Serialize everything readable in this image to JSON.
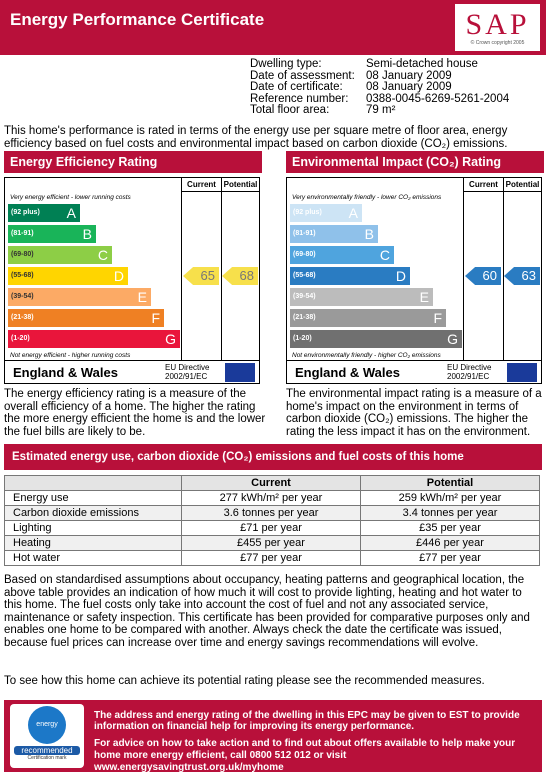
{
  "header": {
    "title": "Energy Performance Certificate",
    "logo": "SAP",
    "copyright": "© Crown copyright 2005"
  },
  "details": [
    {
      "label": "Dwelling type:",
      "value": "Semi-detached house"
    },
    {
      "label": "Date of assessment:",
      "value": "08 January 2009"
    },
    {
      "label": "Date of certificate:",
      "value": "08 January 2009"
    },
    {
      "label": "Reference number:",
      "value": "0388-0045-6269-5261-2004"
    },
    {
      "label": "Total floor area:",
      "value": "79 m²"
    }
  ],
  "intro": "This home's performance is rated in terms of the energy use per square metre of floor area, energy efficiency based on fuel costs and environmental impact based on carbon dioxide (CO₂) emissions.",
  "panels": [
    {
      "title": "Energy Efficiency Rating",
      "columns": [
        "Current",
        "Potential"
      ],
      "top_note": "Very energy efficient - lower running costs",
      "bottom_note": "Not energy efficient - higher running costs",
      "bands": [
        {
          "range": "(92 plus)",
          "letter": "A",
          "color": "#008054"
        },
        {
          "range": "(81-91)",
          "letter": "B",
          "color": "#19b459"
        },
        {
          "range": "(69-80)",
          "letter": "C",
          "color": "#8dce46"
        },
        {
          "range": "(55-68)",
          "letter": "D",
          "color": "#ffd500"
        },
        {
          "range": "(39-54)",
          "letter": "E",
          "color": "#fcaa65"
        },
        {
          "range": "(21-38)",
          "letter": "F",
          "color": "#ef8023"
        },
        {
          "range": "(1-20)",
          "letter": "G",
          "color": "#e9153b"
        }
      ],
      "current": 65,
      "potential": 68,
      "arrow_color": "#f7e04b",
      "region": "England & Wales",
      "directive": [
        "EU Directive",
        "2002/91/EC"
      ],
      "description": "The energy efficiency rating is a measure of the overall efficiency of a home. The higher the rating the more energy efficient the home is and the lower the fuel bills are likely to be."
    },
    {
      "title": "Environmental Impact (CO₂) Rating",
      "columns": [
        "Current",
        "Potential"
      ],
      "top_note": "Very environmentally friendly - lower CO₂ emissions",
      "bottom_note": "Not environmentally friendly - higher CO₂ emissions",
      "bands": [
        {
          "range": "(92 plus)",
          "letter": "A",
          "color": "#cde4f5"
        },
        {
          "range": "(81-91)",
          "letter": "B",
          "color": "#8fc1ea"
        },
        {
          "range": "(69-80)",
          "letter": "C",
          "color": "#4fa4de"
        },
        {
          "range": "(55-68)",
          "letter": "D",
          "color": "#2a7cc2"
        },
        {
          "range": "(39-54)",
          "letter": "E",
          "color": "#bcbcbc"
        },
        {
          "range": "(21-38)",
          "letter": "F",
          "color": "#9a9a9a"
        },
        {
          "range": "(1-20)",
          "letter": "G",
          "color": "#707070"
        }
      ],
      "current": 60,
      "potential": 63,
      "arrow_color": "#2a7cc2",
      "region": "England & Wales",
      "directive": [
        "EU Directive",
        "2002/91/EC"
      ],
      "description": "The environmental impact rating is a measure of a home's impact on the environment in terms of carbon dioxide (CO₂) emissions. The higher the rating the less impact it has on the environment."
    }
  ],
  "estimates": {
    "title": "Estimated energy use, carbon dioxide (CO₂) emissions and fuel costs of this home",
    "columns": [
      "Current",
      "Potential"
    ],
    "rows": [
      [
        "Energy use",
        "277 kWh/m² per year",
        "259 kWh/m² per year"
      ],
      [
        "Carbon dioxide emissions",
        "3.6 tonnes per year",
        "3.4 tonnes per year"
      ],
      [
        "Lighting",
        "£71 per year",
        "£35 per year"
      ],
      [
        "Heating",
        "£455 per year",
        "£446 per year"
      ],
      [
        "Hot water",
        "£77 per year",
        "£77 per year"
      ]
    ]
  },
  "notes": [
    "Based on standardised assumptions about occupancy, heating patterns and geographical location, the above table provides an indication of how much it will cost to provide lighting, heating and hot water to this home. The fuel costs only take into account the cost of fuel and not any associated service, maintenance or safety inspection. This certificate has been provided for comparative purposes only and enables one home to be compared with another. Always check the date the certificate was issued, because fuel prices can increase over time and energy savings recommendations will evolve.",
    "To see how this home can achieve its potential rating please see the recommended measures."
  ],
  "footer": {
    "mark": [
      "energy saving",
      "recommended"
    ],
    "mark_caption": "Certification mark",
    "text1": "The address and energy rating of the dwelling in this EPC may be given to EST to provide information on financial help for improving its energy performance.",
    "text2": {
      "before": "For advice on how to take action and to find out about offers available to help make your home more energy efficient, call ",
      "phone": "0800 512 012",
      "middle": " or visit ",
      "url": "www.energysavingtrust.org.uk/myhome"
    }
  }
}
